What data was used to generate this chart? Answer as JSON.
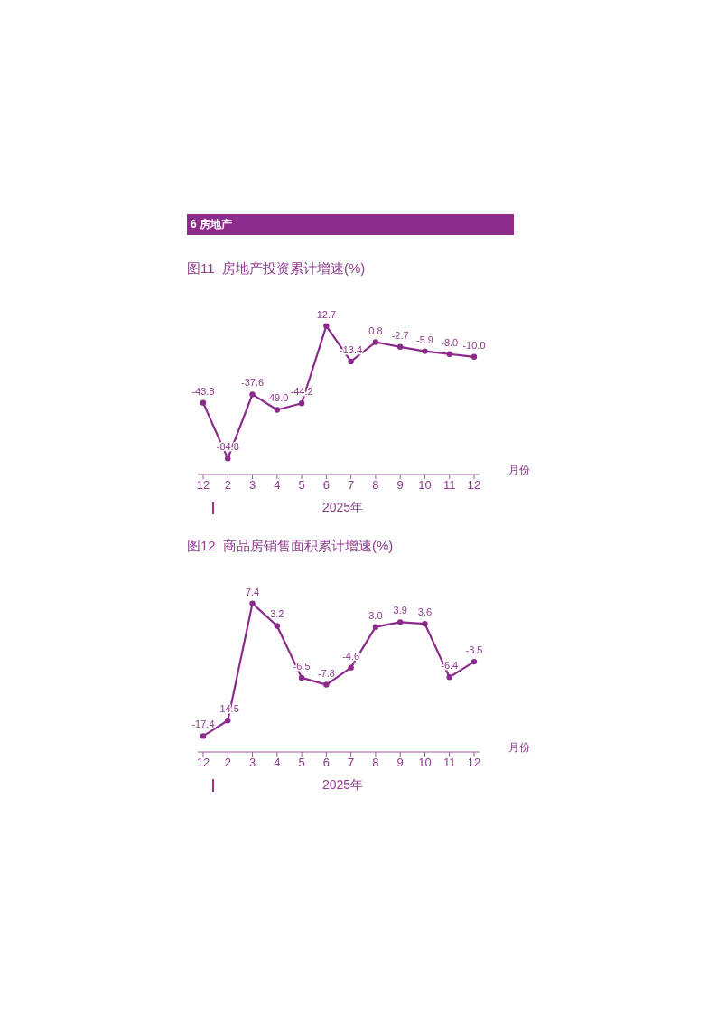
{
  "chart_data": [
    {
      "type": "line",
      "subtitle": "6 房地产",
      "title": "图11  房地产投资累计增速(%)",
      "xlabel": "2025年",
      "annotations": [
        "月份"
      ],
      "categories": [
        "12",
        "2",
        "3",
        "4",
        "5",
        "6",
        "7",
        "8",
        "9",
        "10",
        "11",
        "12"
      ],
      "values": [
        -43.8,
        -84.8,
        -37.6,
        -49.0,
        -44.2,
        12.7,
        -13.4,
        0.8,
        -2.7,
        -5.9,
        -8.0,
        -10.0
      ],
      "value_labels": [
        "-43.8",
        "-84.8",
        "-37.6",
        "-49.0",
        "-44.2",
        "12.7",
        "-13.4",
        "0.8",
        "-2.7",
        "-5.9",
        "-8.0",
        "-10.0"
      ],
      "color": "#8b2a8b",
      "marker": "circle",
      "line_style": "solid"
    },
    {
      "type": "line",
      "title": "图12  商品房销售面积累计增速(%)",
      "xlabel": "2025年",
      "annotations": [
        "月份"
      ],
      "categories": [
        "12",
        "2",
        "3",
        "4",
        "5",
        "6",
        "7",
        "8",
        "9",
        "10",
        "11",
        "12"
      ],
      "values": [
        -17.4,
        -14.5,
        7.4,
        3.2,
        -6.5,
        -7.8,
        -4.6,
        3.0,
        3.9,
        3.6,
        -6.4,
        -3.5
      ],
      "value_labels": [
        "-17.4",
        "-14.5",
        "7.4",
        "3.2",
        "-6.5",
        "-7.8",
        "-4.6",
        "3.0",
        "3.9",
        "3.6",
        "-6.4",
        "-3.5"
      ],
      "color": "#8b2a8b",
      "marker": "circle",
      "line_style": "solid"
    }
  ]
}
